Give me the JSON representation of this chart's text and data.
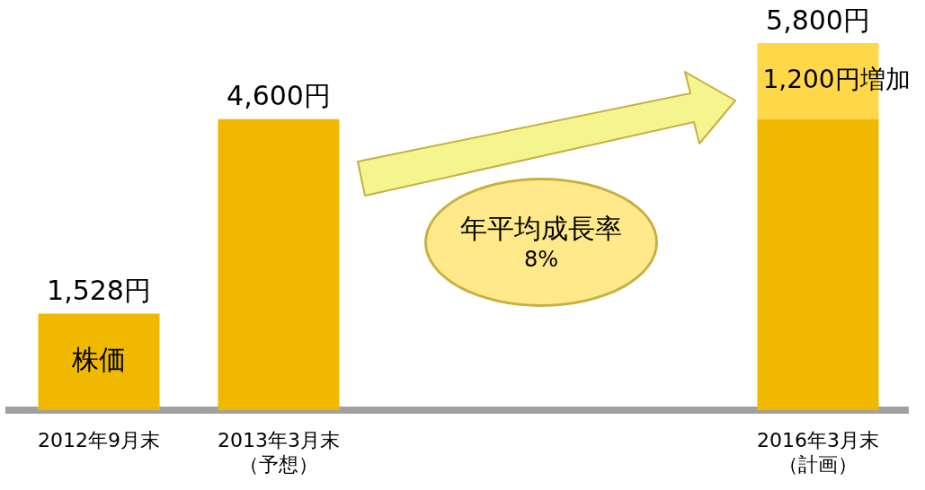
{
  "chart_data": {
    "type": "bar",
    "stacked": true,
    "legend": false,
    "grid": false,
    "tick_labels": "x",
    "categories": [
      "2012年9月末",
      "2013年3月末（予想）",
      null,
      null,
      "2016年3月末（計画）"
    ],
    "series": [
      {
        "color": "#f0b900",
        "values": [
          1528,
          4600,
          null,
          null,
          4600
        ]
      },
      {
        "color": "#ffd84a",
        "values": [
          null,
          null,
          null,
          null,
          1200
        ],
        "value_labels": [
          null,
          null,
          null,
          null,
          "1,200円増加"
        ]
      }
    ],
    "totals": [
      "1,528円",
      "4,600円",
      null,
      null,
      "5,800円"
    ],
    "annotations": [
      "株価",
      "年平均成長率\n8%"
    ]
  }
}
